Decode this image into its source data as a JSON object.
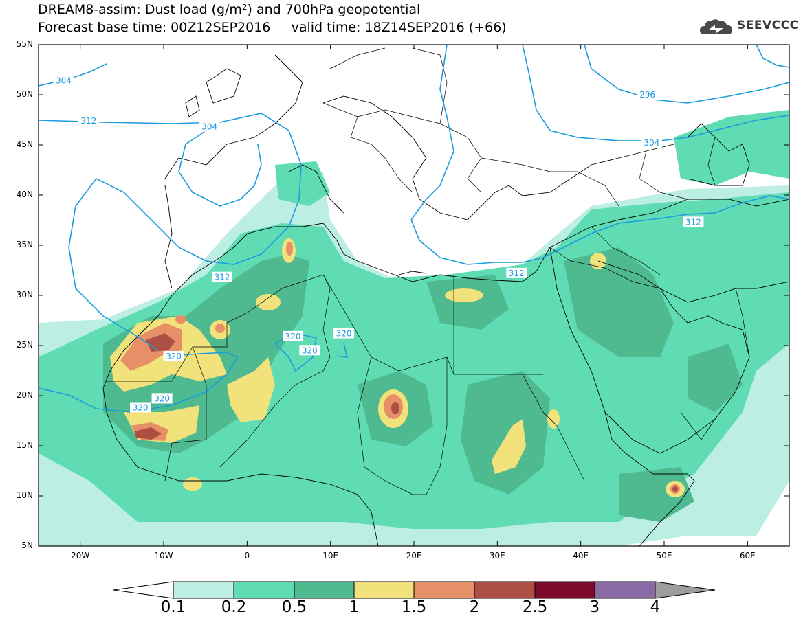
{
  "header": {
    "title_line1": "DREAM8-assim: Dust load (g/m²) and 700hPa geopotential",
    "title_line2": "Forecast base time: 00Z12SEP2016     valid time: 18Z14SEP2016 (+66)",
    "logo_text": "SEEVCCC"
  },
  "map": {
    "lat_labels": [
      "55N",
      "50N",
      "45N",
      "40N",
      "35N",
      "30N",
      "25N",
      "20N",
      "15N",
      "10N",
      "5N"
    ],
    "lon_labels": [
      "20W",
      "10W",
      "0",
      "10E",
      "20E",
      "30E",
      "40E",
      "50E",
      "60E"
    ],
    "contour_labels": [
      {
        "text": "304",
        "lon": -22.0,
        "lat": 51.4
      },
      {
        "text": "312",
        "lon": -19.0,
        "lat": 47.4
      },
      {
        "text": "304",
        "lon": -4.5,
        "lat": 46.8
      },
      {
        "text": "296",
        "lon": 48.0,
        "lat": 50.0
      },
      {
        "text": "304",
        "lon": 48.5,
        "lat": 45.2
      },
      {
        "text": "312",
        "lon": 53.5,
        "lat": 37.3
      },
      {
        "text": "312",
        "lon": 32.3,
        "lat": 32.2
      },
      {
        "text": "312",
        "lon": -3.0,
        "lat": 31.8
      },
      {
        "text": "320",
        "lon": 5.5,
        "lat": 25.9
      },
      {
        "text": "320",
        "lon": 11.6,
        "lat": 26.2
      },
      {
        "text": "320",
        "lon": 7.5,
        "lat": 24.5
      },
      {
        "text": "320",
        "lon": -8.8,
        "lat": 23.9
      },
      {
        "text": "320",
        "lon": -10.2,
        "lat": 19.7
      },
      {
        "text": "320",
        "lon": -12.8,
        "lat": 18.8
      }
    ],
    "colors": {
      "land_line": "#000000",
      "geopotential_line": "#1a9be0",
      "dust_0_1": "#bdeee3",
      "dust_0_2": "#5fdcb3",
      "dust_0_5": "#4fba8f",
      "dust_1": "#f1e27b",
      "dust_1_5": "#e79068",
      "dust_2": "#ae4f44",
      "dust_2_5": "#7d0a2a",
      "dust_3": "#8a6aa4",
      "dust_4": "#9e9e9e"
    }
  },
  "colorbar": {
    "labels": [
      "0.1",
      "0.2",
      "0.5",
      "1",
      "1.5",
      "2",
      "2.5",
      "3",
      "4"
    ]
  }
}
